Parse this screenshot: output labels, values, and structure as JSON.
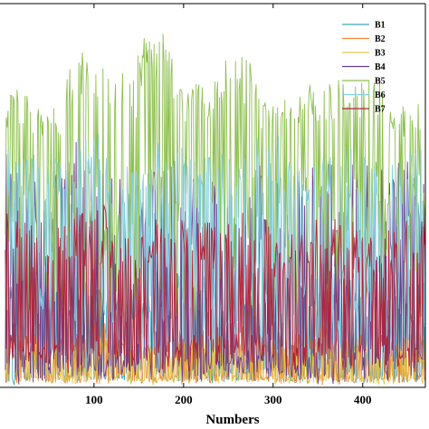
{
  "chart_data": {
    "type": "line",
    "xlabel": "Numbers",
    "ylabel": "",
    "title": "",
    "xlim": [
      -5,
      470
    ],
    "ylim": [
      0,
      1
    ],
    "x_ticks": [
      100,
      200,
      300,
      400
    ],
    "grid": false,
    "legend_position": "top-right",
    "x_start": 1,
    "x_end": 470,
    "series": [
      {
        "name": "B1",
        "color": "#3fa6b8",
        "peaks": [
          [
            20,
            0.32
          ],
          [
            55,
            0.28
          ],
          [
            95,
            0.3
          ],
          [
            140,
            0.26
          ],
          [
            185,
            0.31
          ],
          [
            230,
            0.29
          ],
          [
            270,
            0.33
          ],
          [
            315,
            0.27
          ],
          [
            360,
            0.3
          ],
          [
            405,
            0.28
          ],
          [
            450,
            0.29
          ]
        ],
        "baseline": 0.02
      },
      {
        "name": "B2",
        "color": "#e8883a",
        "peaks": [
          [
            15,
            0.16
          ],
          [
            60,
            0.14
          ],
          [
            110,
            0.18
          ],
          [
            150,
            0.12
          ],
          [
            200,
            0.15
          ],
          [
            250,
            0.17
          ],
          [
            300,
            0.13
          ],
          [
            350,
            0.16
          ],
          [
            400,
            0.14
          ],
          [
            445,
            0.15
          ]
        ],
        "baseline": 0.02
      },
      {
        "name": "B3",
        "color": "#e3c64a",
        "peaks": [
          [
            25,
            0.12
          ],
          [
            70,
            0.1
          ],
          [
            120,
            0.13
          ],
          [
            165,
            0.11
          ],
          [
            210,
            0.12
          ],
          [
            260,
            0.1
          ],
          [
            310,
            0.13
          ],
          [
            355,
            0.11
          ],
          [
            410,
            0.12
          ],
          [
            455,
            0.1
          ]
        ],
        "baseline": 0.02
      },
      {
        "name": "B4",
        "color": "#6a3d8a",
        "peaks": [
          [
            10,
            0.62
          ],
          [
            45,
            0.58
          ],
          [
            90,
            0.64
          ],
          [
            135,
            0.55
          ],
          [
            178,
            0.61
          ],
          [
            225,
            0.57
          ],
          [
            268,
            0.63
          ],
          [
            312,
            0.56
          ],
          [
            355,
            0.6
          ],
          [
            400,
            0.58
          ],
          [
            448,
            0.59
          ]
        ],
        "baseline": 0.02
      },
      {
        "name": "B5",
        "color": "#8dbf4e",
        "peaks": [
          [
            10,
            0.78
          ],
          [
            40,
            0.74
          ],
          [
            90,
            0.88
          ],
          [
            130,
            0.82
          ],
          [
            167,
            0.92
          ],
          [
            210,
            0.8
          ],
          [
            268,
            0.86
          ],
          [
            305,
            0.76
          ],
          [
            345,
            0.79
          ],
          [
            395,
            0.81
          ],
          [
            450,
            0.74
          ]
        ],
        "baseline": 0.55
      },
      {
        "name": "B6",
        "color": "#86cfe3",
        "peaks": [
          [
            15,
            0.62
          ],
          [
            55,
            0.6
          ],
          [
            100,
            0.66
          ],
          [
            145,
            0.58
          ],
          [
            190,
            0.64
          ],
          [
            240,
            0.61
          ],
          [
            285,
            0.67
          ],
          [
            330,
            0.59
          ],
          [
            375,
            0.63
          ],
          [
            420,
            0.6
          ],
          [
            460,
            0.62
          ]
        ],
        "baseline": 0.28
      },
      {
        "name": "B7",
        "color": "#b0243a",
        "peaks": [
          [
            12,
            0.46
          ],
          [
            50,
            0.42
          ],
          [
            95,
            0.48
          ],
          [
            140,
            0.4
          ],
          [
            185,
            0.45
          ],
          [
            232,
            0.43
          ],
          [
            278,
            0.47
          ],
          [
            322,
            0.41
          ],
          [
            368,
            0.44
          ],
          [
            412,
            0.42
          ],
          [
            458,
            0.45
          ]
        ],
        "baseline": 0.1
      }
    ]
  }
}
